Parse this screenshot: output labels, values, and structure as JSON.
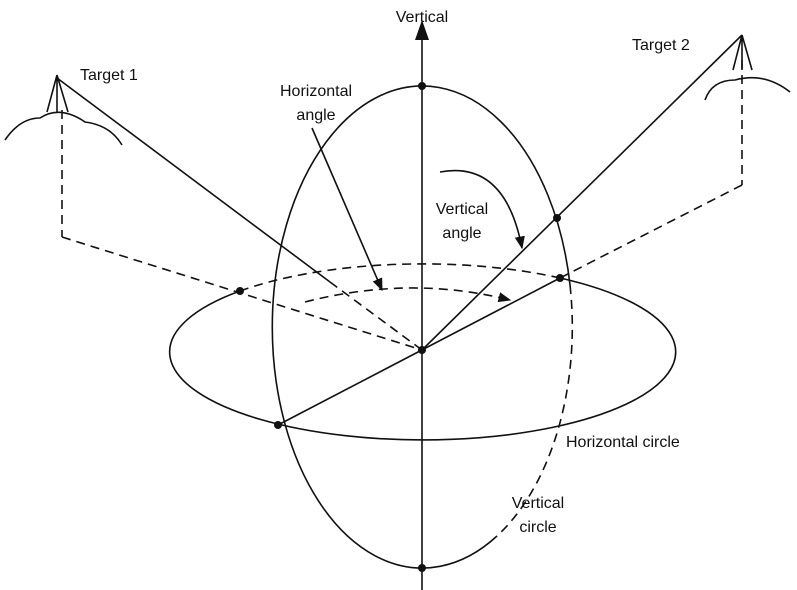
{
  "labels": {
    "vertical": "Vertical",
    "target_1": "Target 1",
    "target_2": "Target 2",
    "horizontal_angle": [
      "Horizontal",
      "angle"
    ],
    "vertical_angle": [
      "Vertical",
      "angle"
    ],
    "horizontal_circle": "Horizontal circle",
    "vertical_circle": [
      "Vertical",
      "circle"
    ]
  }
}
